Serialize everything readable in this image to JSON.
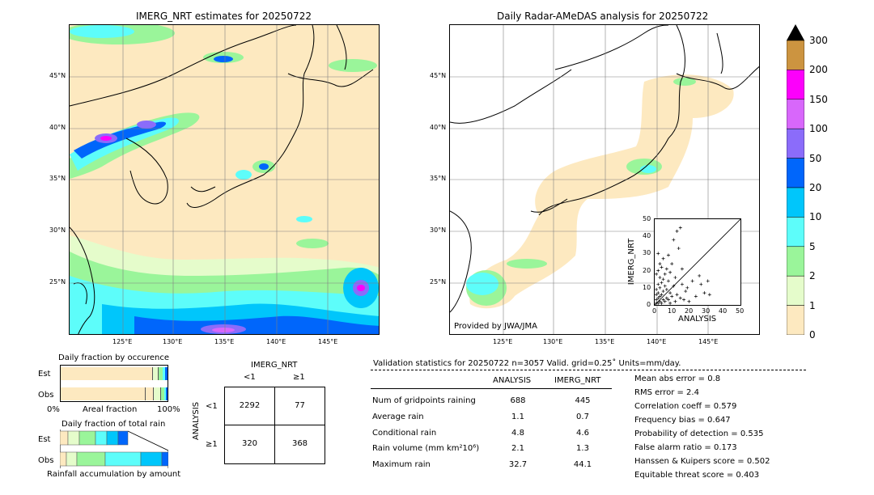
{
  "maps": {
    "left_title": "IMERG_NRT estimates for 20250722",
    "right_title": "Daily Radar-AMeDAS analysis for 20250722",
    "lat_ticks": [
      "45°N",
      "40°N",
      "35°N",
      "30°N",
      "25°N"
    ],
    "lon_ticks": [
      "125°E",
      "130°E",
      "135°E",
      "140°E",
      "145°E"
    ],
    "credit": "Provided by JWA/JMA"
  },
  "colorbar": {
    "levels": [
      "0",
      "1",
      "2",
      "5",
      "10",
      "20",
      "50",
      "100",
      "150",
      "200",
      "300"
    ],
    "colors": [
      "#fde9c0",
      "#e5fccb",
      "#9af59a",
      "#5dfdfa",
      "#00c6fb",
      "#0066fb",
      "#8b6cfa",
      "#d867fb",
      "#fc00fb",
      "#cc9440",
      "#000000"
    ]
  },
  "scatter": {
    "ylabel": "IMERG_NRT",
    "xlabel": "ANALYSIS",
    "ticks": [
      "0",
      "10",
      "20",
      "30",
      "40",
      "50"
    ]
  },
  "chart_data": {
    "type": "scatter",
    "xlabel": "ANALYSIS",
    "ylabel": "IMERG_NRT",
    "xlim": [
      0,
      50
    ],
    "ylim": [
      0,
      50
    ],
    "points": [
      [
        1,
        1
      ],
      [
        2,
        1
      ],
      [
        1,
        3
      ],
      [
        3,
        2
      ],
      [
        2,
        4
      ],
      [
        4,
        1
      ],
      [
        5,
        3
      ],
      [
        1,
        6
      ],
      [
        3,
        5
      ],
      [
        6,
        2
      ],
      [
        2,
        7
      ],
      [
        7,
        4
      ],
      [
        4,
        6
      ],
      [
        5,
        8
      ],
      [
        8,
        3
      ],
      [
        1,
        9
      ],
      [
        9,
        1
      ],
      [
        3,
        10
      ],
      [
        10,
        5
      ],
      [
        6,
        11
      ],
      [
        2,
        12
      ],
      [
        12,
        2
      ],
      [
        4,
        13
      ],
      [
        7,
        9
      ],
      [
        9,
        7
      ],
      [
        11,
        11
      ],
      [
        13,
        6
      ],
      [
        5,
        15
      ],
      [
        15,
        4
      ],
      [
        8,
        14
      ],
      [
        3,
        16
      ],
      [
        1,
        18
      ],
      [
        6,
        18
      ],
      [
        2,
        20
      ],
      [
        4,
        22
      ],
      [
        7,
        21
      ],
      [
        3,
        24
      ],
      [
        9,
        19
      ],
      [
        17,
        3
      ],
      [
        18,
        8
      ],
      [
        20,
        2
      ],
      [
        16,
        12
      ],
      [
        12,
        16
      ],
      [
        10,
        24
      ],
      [
        5,
        27
      ],
      [
        2,
        30
      ],
      [
        8,
        29
      ],
      [
        14,
        33
      ],
      [
        11,
        38
      ],
      [
        13,
        43
      ],
      [
        15,
        45
      ],
      [
        26,
        17
      ],
      [
        29,
        7
      ],
      [
        32,
        6
      ],
      [
        31,
        14
      ],
      [
        27,
        12
      ],
      [
        19,
        10
      ],
      [
        24,
        5
      ],
      [
        22,
        14
      ],
      [
        16,
        21
      ]
    ]
  },
  "bars_occurrence": {
    "title": "Daily fraction by occurence",
    "rows": [
      "Est",
      "Obs"
    ],
    "xaxis_left": "0%",
    "xaxis_mid": "Areal fraction",
    "xaxis_right": "100%"
  },
  "bars_rain": {
    "title": "Daily fraction of total rain",
    "rows": [
      "Est",
      "Obs"
    ],
    "xaxis_label": "Rainfall accumulation by amount"
  },
  "contingency": {
    "title": "IMERG_NRT",
    "col_lt": "<1",
    "col_ge": "≥1",
    "row_lt": "<1",
    "row_ge": "≥1",
    "ylabel": "ANALYSIS",
    "cells": [
      "2292",
      "77",
      "320",
      "368"
    ]
  },
  "validation": {
    "header": "Validation statistics for 20250722  n=3057 Valid. grid=0.25˚ Units=mm/day.",
    "col_analysis": "ANALYSIS",
    "col_imerg": "IMERG_NRT",
    "rows": [
      {
        "label": "Num of gridpoints raining",
        "a": "688",
        "b": "445"
      },
      {
        "label": "Average rain",
        "a": "1.1",
        "b": "0.7"
      },
      {
        "label": "Conditional rain",
        "a": "4.8",
        "b": "4.6"
      },
      {
        "label": "Rain volume (mm km²10⁶)",
        "a": "2.1",
        "b": "1.3"
      },
      {
        "label": "Maximum rain",
        "a": "32.7",
        "b": "44.1"
      }
    ],
    "scores": [
      "Mean abs error =    0.8",
      "RMS error =    2.4",
      "Correlation coeff =  0.579",
      "Frequency bias =  0.647",
      "Probability of detection =  0.535",
      "False alarm ratio =  0.173",
      "Hanssen & Kuipers score =  0.502",
      "Equitable threat score =  0.403"
    ]
  }
}
